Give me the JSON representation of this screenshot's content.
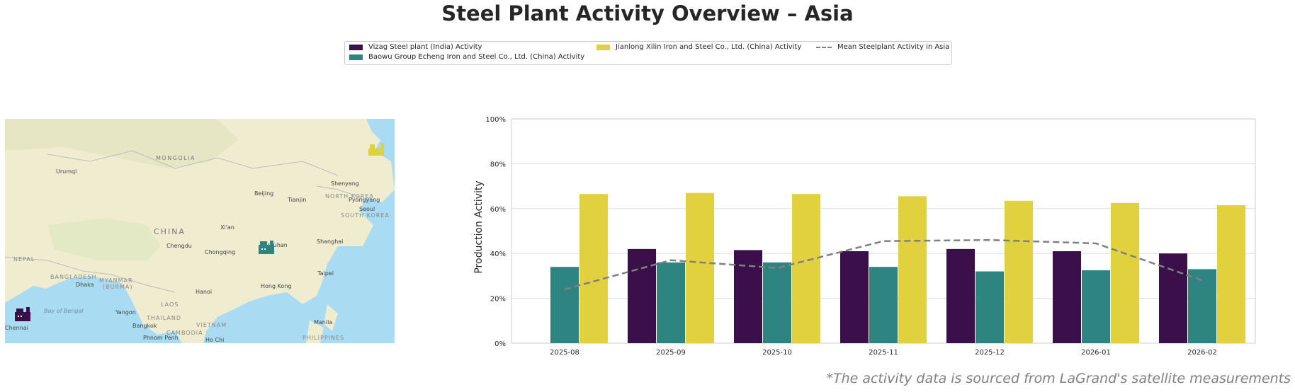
{
  "title": "Steel Plant Activity Overview – Asia",
  "footnote": "*The activity data is sourced from LaGrand's satellite measurements",
  "legend": [
    {
      "label": "Vizag Steel plant (India) Activity",
      "color": "#3b0f4a",
      "kind": "patch"
    },
    {
      "label": "Baowu Group Echeng Iron and Steel Co., Ltd. (China) Activity",
      "color": "#2e8480",
      "kind": "patch"
    },
    {
      "label": "Jianlong Xilin Iron and Steel Co., Ltd. (China) Activity",
      "color": "#e1d13f",
      "kind": "patch"
    },
    {
      "label": "Mean Steelplant Activity in Asia",
      "color": "#808080",
      "kind": "dash"
    }
  ],
  "map": {
    "labels": [
      "MONGOLIA",
      "Urumqi",
      "Shenyang",
      "Beijing",
      "Tianjin",
      "NORTH KOREA",
      "Pyongyang",
      "Seoul",
      "SOUTH KOREA",
      "Xi'an",
      "CHINA",
      "Chengdu",
      "Chongqing",
      "Wuhan",
      "Shanghai",
      "NEPAL",
      "BANGLADESH",
      "Dhaka",
      "MYANMAR",
      "(BURMA)",
      "Taipei",
      "Hanoi",
      "Hong Kong",
      "LAOS",
      "Bay of Bengal",
      "Yangon",
      "THAILAND",
      "VIETNAM",
      "Bangkok",
      "CAMBODIA",
      "Phnom Penh",
      "Ho Chi",
      "Manila",
      "PHILIPPINES",
      "Chennai"
    ],
    "land_color": "#efeccf",
    "water_color": "#a9dcf2"
  },
  "chart_data": {
    "type": "bar",
    "categories": [
      "2025-08",
      "2025-09",
      "2025-10",
      "2025-11",
      "2025-12",
      "2026-01",
      "2026-02"
    ],
    "series": [
      {
        "name": "Vizag Steel plant (India) Activity",
        "color": "#3b0f4a",
        "values": [
          null,
          42,
          41.5,
          41,
          42,
          41,
          40
        ]
      },
      {
        "name": "Baowu Group Echeng Iron and Steel Co., Ltd. (China) Activity",
        "color": "#2e8480",
        "values": [
          34,
          36,
          36,
          34,
          32,
          32.5,
          33
        ]
      },
      {
        "name": "Jianlong Xilin Iron and Steel Co., Ltd. (China) Activity",
        "color": "#e1d13f",
        "values": [
          66.5,
          67,
          66.5,
          65.5,
          63.5,
          62.5,
          61.5
        ]
      }
    ],
    "mean_line": {
      "name": "Mean Steelplant Activity in Asia",
      "color": "#808080",
      "values": [
        24,
        37,
        33.5,
        45.5,
        46,
        44.5,
        28
      ]
    },
    "ylabel": "Production Activity",
    "ylim": [
      0,
      100
    ],
    "yticks": [
      "0%",
      "20%",
      "40%",
      "60%",
      "80%",
      "100%"
    ],
    "grid": true
  }
}
